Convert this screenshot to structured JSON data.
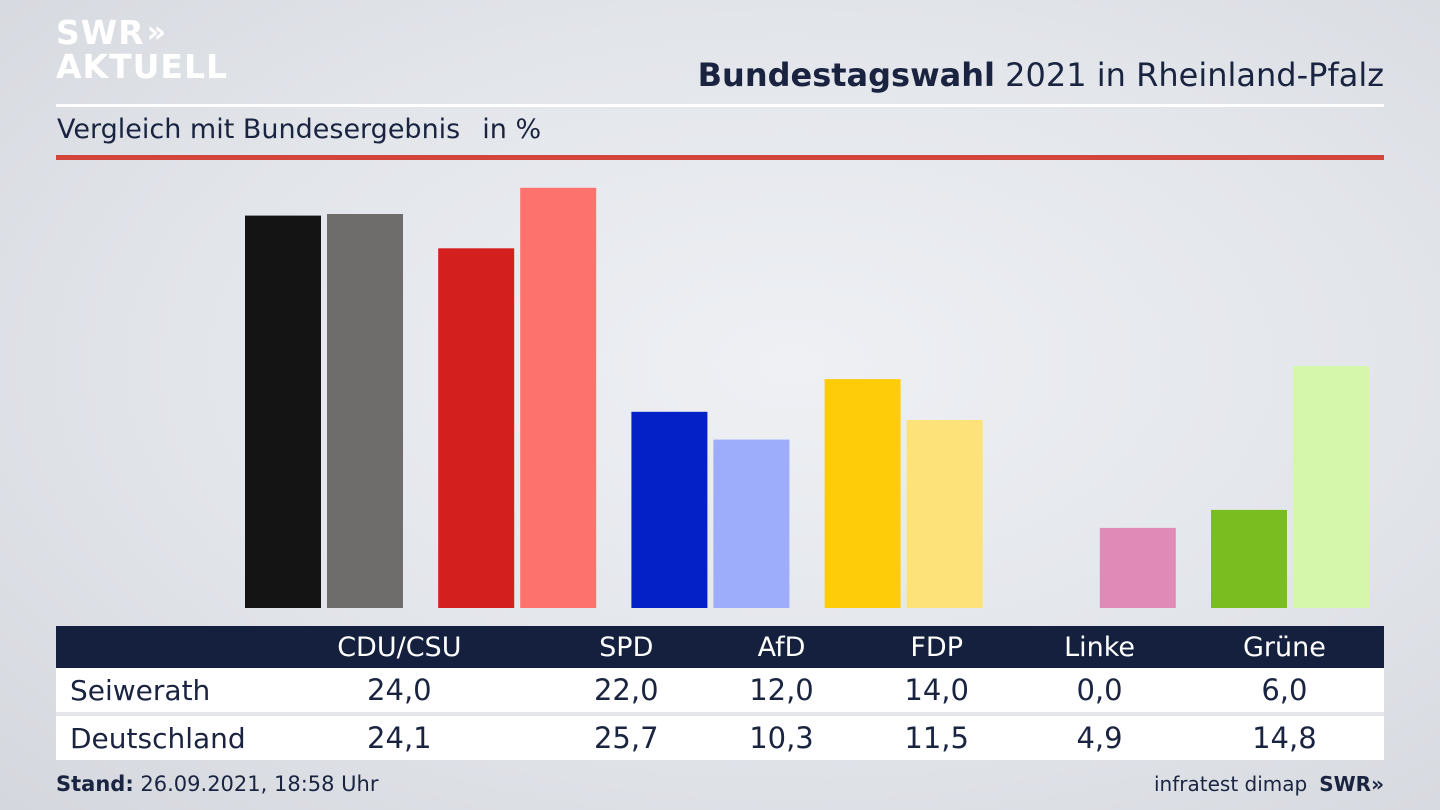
{
  "logo": {
    "line1": "SWR",
    "arrows": "»",
    "line2": "AKTUELL"
  },
  "header": {
    "title_bold": "Bundestagswahl",
    "title_rest": " 2021 in Rheinland-Pfalz"
  },
  "subtitle": {
    "text": "Vergleich mit Bundesergebnis",
    "unit": "in %"
  },
  "chart_data": {
    "type": "bar",
    "categories": [
      "CDU/CSU",
      "SPD",
      "AfD",
      "FDP",
      "Linke",
      "Grüne"
    ],
    "series": [
      {
        "name": "Seiwerath",
        "values": [
          24.0,
          22.0,
          12.0,
          14.0,
          0.0,
          6.0
        ],
        "colors": [
          "#141414",
          "#d41f1f",
          "#0421c8",
          "#ffcc0a",
          "#de5d9b",
          "#7abd21"
        ]
      },
      {
        "name": "Deutschland",
        "values": [
          24.1,
          25.7,
          10.3,
          11.5,
          4.9,
          14.8
        ],
        "colors": [
          "#6e6d6b",
          "#fd726c",
          "#9eacfc",
          "#fde27a",
          "#e08ab8",
          "#d5f7ac"
        ]
      }
    ],
    "ylim": [
      0,
      26
    ]
  },
  "table": {
    "headers": [
      "",
      "CDU/CSU",
      "SPD",
      "AfD",
      "FDP",
      "Linke",
      "Grüne"
    ],
    "rows": [
      {
        "label": "Seiwerath",
        "values": [
          "24,0",
          "22,0",
          "12,0",
          "14,0",
          "0,0",
          "6,0"
        ]
      },
      {
        "label": "Deutschland",
        "values": [
          "24,1",
          "25,7",
          "10,3",
          "11,5",
          "4,9",
          "14,8"
        ]
      }
    ]
  },
  "footer": {
    "stand_label": "Stand:",
    "stand_value": " 26.09.2021, 18:58 Uhr",
    "source": "infratest dimap",
    "brand": "SWR»"
  }
}
